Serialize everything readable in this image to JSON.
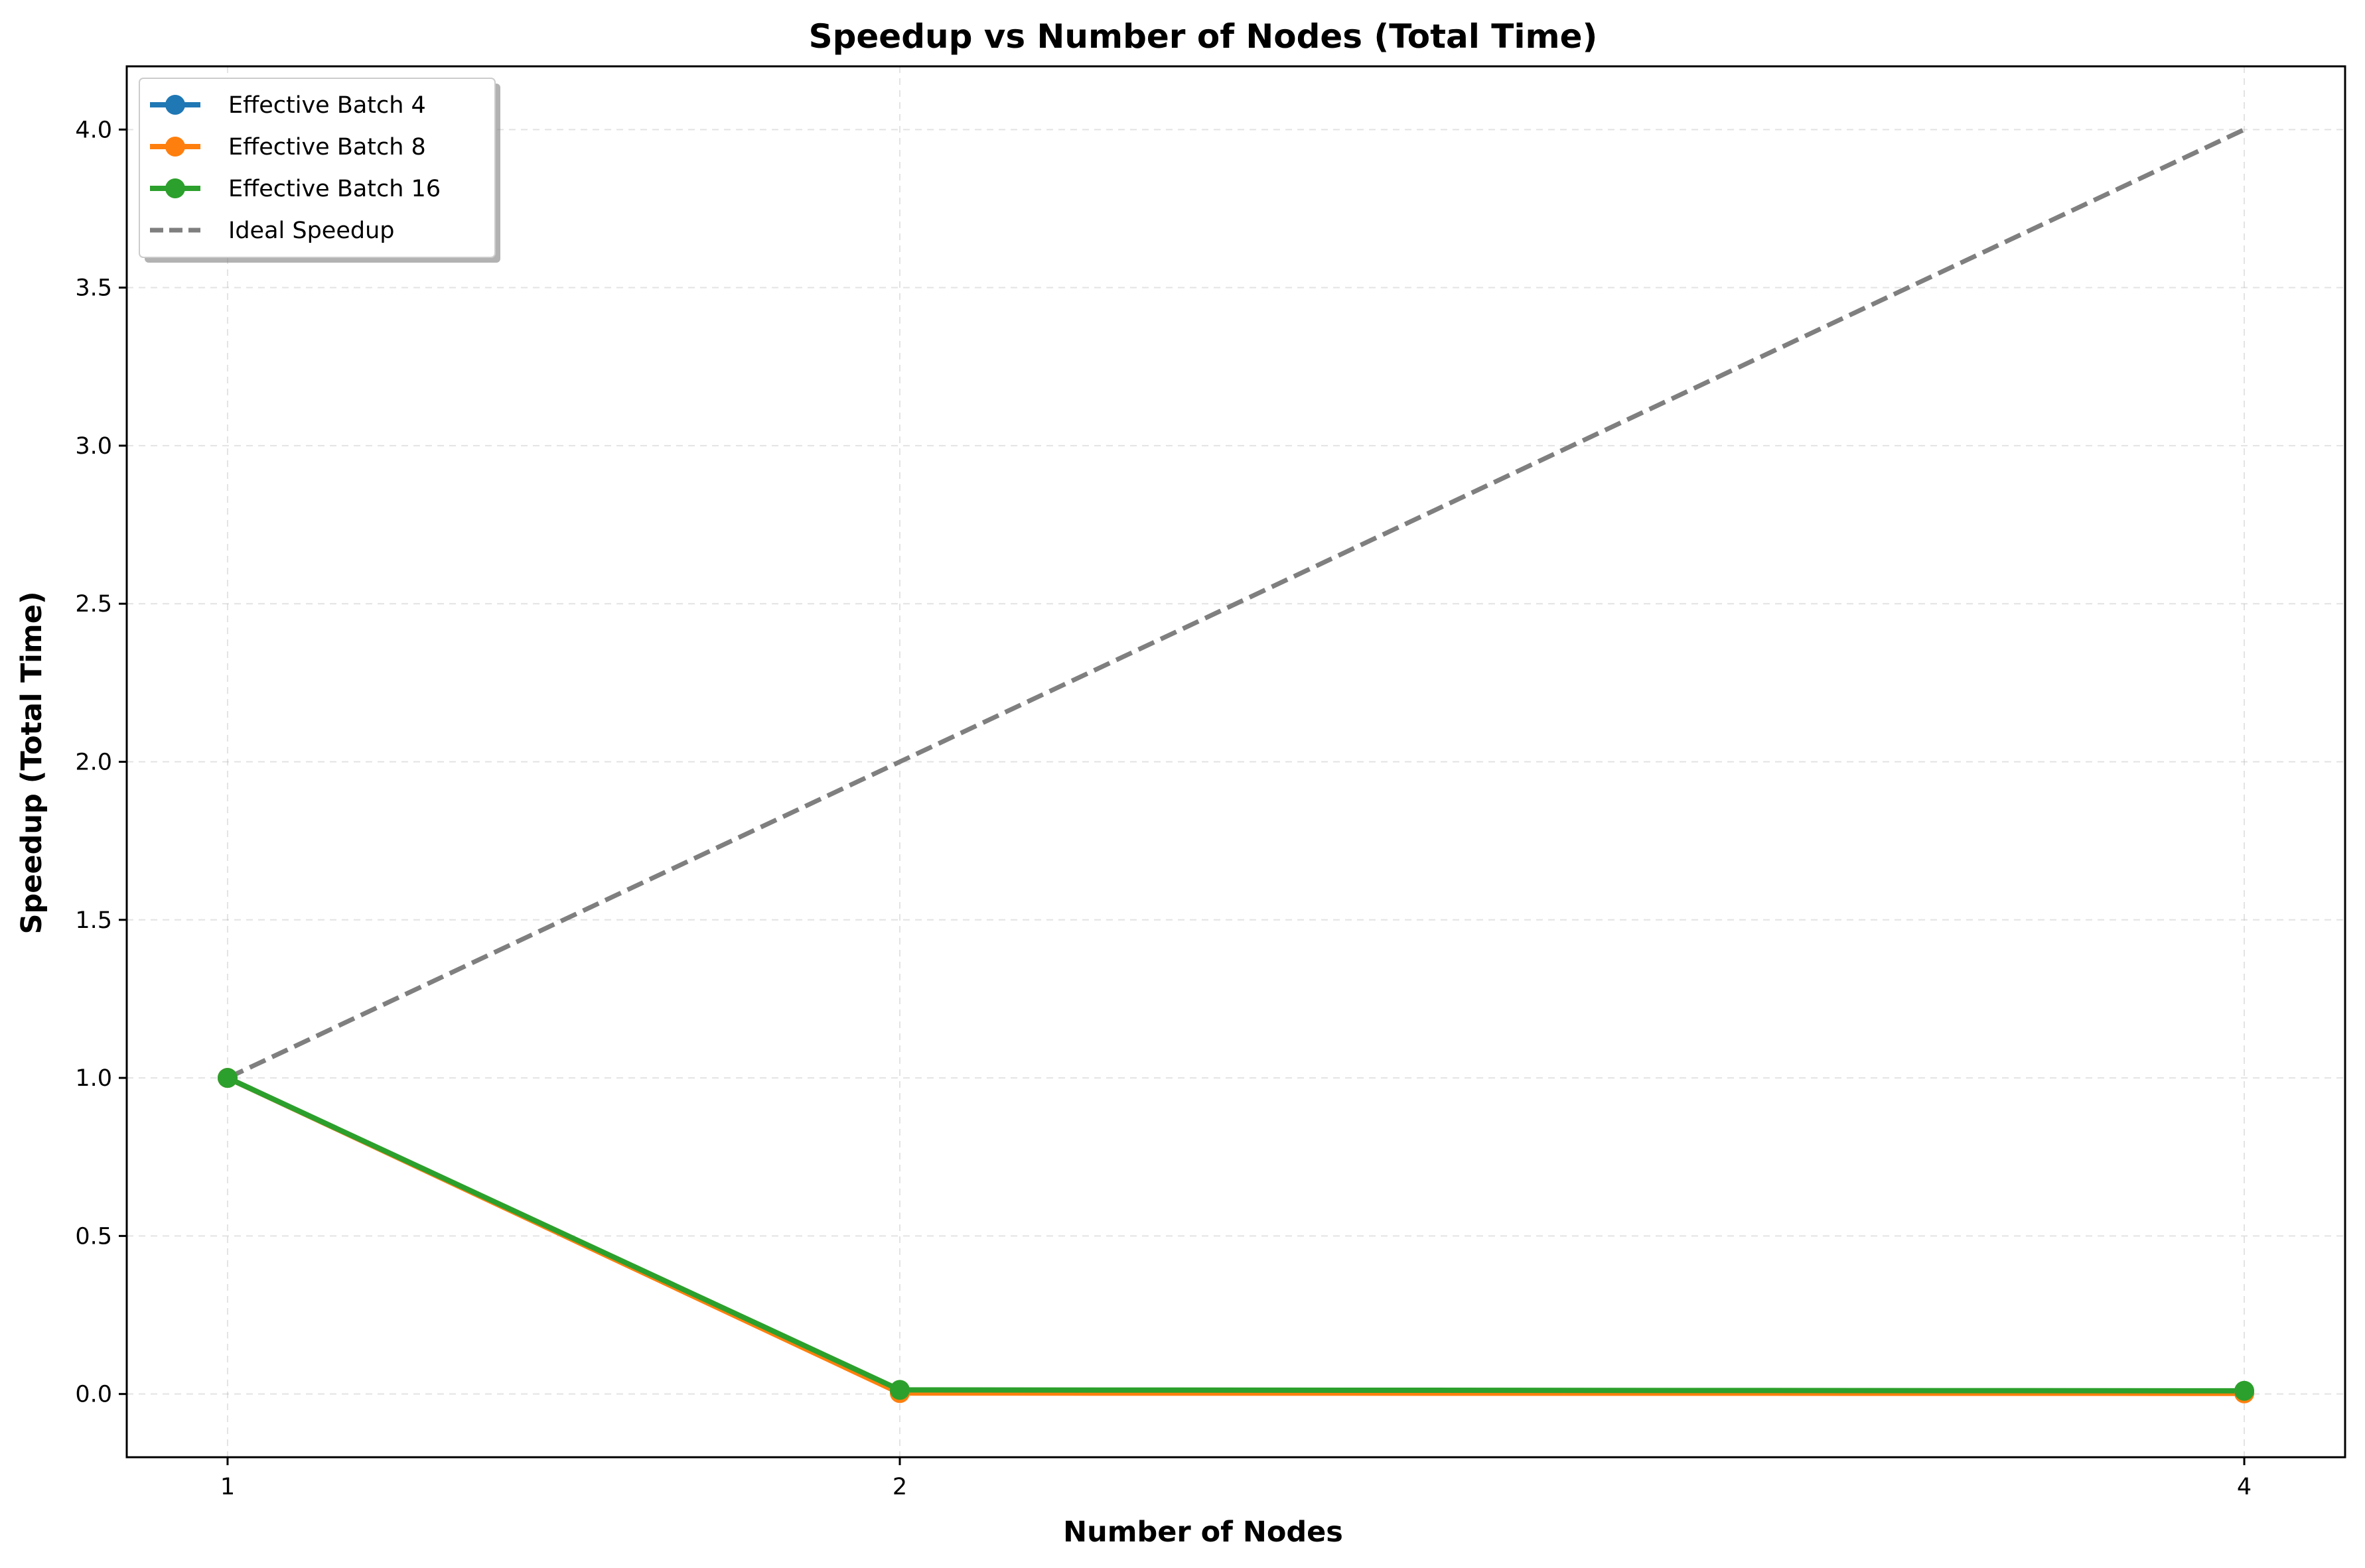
{
  "chart_data": {
    "type": "line",
    "title": "Speedup vs Number of Nodes (Total Time)",
    "xlabel": "Number of Nodes",
    "ylabel": "Speedup (Total Time)",
    "x": [
      1,
      2,
      4
    ],
    "x_ticks": [
      1,
      2,
      4
    ],
    "x_tick_labels": [
      "1",
      "2",
      "4"
    ],
    "xlim": [
      0.85,
      4.15
    ],
    "y_ticks": [
      0.0,
      0.5,
      1.0,
      1.5,
      2.0,
      2.5,
      3.0,
      3.5,
      4.0
    ],
    "y_tick_labels": [
      "0.0",
      "0.5",
      "1.0",
      "1.5",
      "2.0",
      "2.5",
      "3.0",
      "3.5",
      "4.0"
    ],
    "ylim": [
      -0.2,
      4.2
    ],
    "grid": true,
    "legend_position": "top-left",
    "series": [
      {
        "name": "Effective Batch 4",
        "values": [
          1.0,
          0.005,
          0.003
        ],
        "color": "#1f77b4",
        "style": "solid",
        "marker": "circle"
      },
      {
        "name": "Effective Batch 8",
        "values": [
          1.0,
          0.003,
          0.002
        ],
        "color": "#ff7f0e",
        "style": "solid",
        "marker": "circle"
      },
      {
        "name": "Effective Batch 16",
        "values": [
          1.0,
          0.013,
          0.01
        ],
        "color": "#2ca02c",
        "style": "solid",
        "marker": "circle"
      },
      {
        "name": "Ideal Speedup",
        "values": [
          1,
          2,
          4
        ],
        "color": "#7f7f7f",
        "style": "dashed",
        "marker": "none"
      }
    ]
  }
}
